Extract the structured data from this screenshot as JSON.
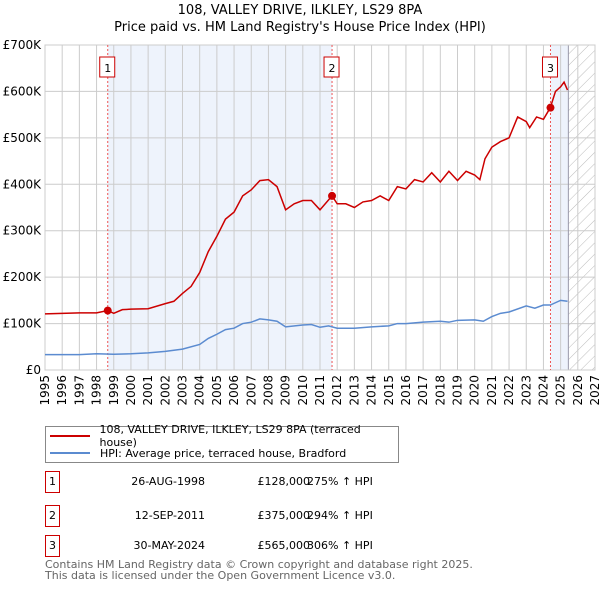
{
  "chart_data": {
    "type": "line",
    "title": "108, VALLEY DRIVE, ILKLEY, LS29 8PA",
    "subtitle": "Price paid vs. HM Land Registry's House Price Index (HPI)",
    "xlim": [
      1995,
      2027
    ],
    "ylim": [
      0,
      700000
    ],
    "x_ticks": [
      "1995",
      "1996",
      "1997",
      "1998",
      "1999",
      "2000",
      "2001",
      "2002",
      "2003",
      "2004",
      "2005",
      "2006",
      "2007",
      "2008",
      "2009",
      "2010",
      "2011",
      "2012",
      "2013",
      "2014",
      "2015",
      "2016",
      "2017",
      "2018",
      "2019",
      "2020",
      "2021",
      "2022",
      "2023",
      "2024",
      "2025",
      "2026",
      "2027"
    ],
    "y_ticks": [
      {
        "v": 0,
        "label": "£0"
      },
      {
        "v": 100000,
        "label": "£100K"
      },
      {
        "v": 200000,
        "label": "£200K"
      },
      {
        "v": 300000,
        "label": "£300K"
      },
      {
        "v": 400000,
        "label": "£400K"
      },
      {
        "v": 500000,
        "label": "£500K"
      },
      {
        "v": 600000,
        "label": "£600K"
      },
      {
        "v": 700000,
        "label": "£700K"
      }
    ],
    "grid": true,
    "series": [
      {
        "name": "108, VALLEY DRIVE, ILKLEY, LS29 8PA (terraced house)",
        "color": "#cc0000",
        "x": [
          1995,
          1996,
          1997,
          1998,
          1998.65,
          1999,
          1999.5,
          2000,
          2001,
          2002,
          2002.5,
          2003,
          2003.5,
          2004,
          2004.5,
          2005,
          2005.5,
          2006,
          2006.5,
          2007,
          2007.5,
          2008,
          2008.5,
          2009,
          2009.5,
          2010,
          2010.5,
          2011,
          2011.7,
          2012,
          2012.5,
          2013,
          2013.5,
          2014,
          2014.5,
          2015,
          2015.5,
          2016,
          2016.5,
          2017,
          2017.5,
          2018,
          2018.5,
          2019,
          2019.5,
          2020,
          2020.3,
          2020.6,
          2021,
          2021.5,
          2022,
          2022.5,
          2023,
          2023.2,
          2023.6,
          2024,
          2024.4,
          2024.7,
          2025,
          2025.2,
          2025.4
        ],
        "y": [
          121000,
          122000,
          123000,
          123000,
          128000,
          122000,
          130000,
          131000,
          132000,
          143000,
          148000,
          165000,
          180000,
          210000,
          255000,
          288000,
          325000,
          340000,
          375000,
          388000,
          408000,
          410000,
          395000,
          345000,
          358000,
          365000,
          365000,
          345000,
          375000,
          358000,
          358000,
          350000,
          362000,
          365000,
          375000,
          365000,
          395000,
          390000,
          410000,
          405000,
          425000,
          405000,
          428000,
          408000,
          428000,
          420000,
          410000,
          455000,
          480000,
          492000,
          500000,
          545000,
          535000,
          522000,
          545000,
          540000,
          565000,
          600000,
          610000,
          620000,
          603000
        ]
      },
      {
        "name": "HPI: Average price, terraced house, Bradford",
        "color": "#5b8bd0",
        "x": [
          1995,
          1997,
          1998,
          1999,
          2000,
          2001,
          2002,
          2003,
          2004,
          2004.5,
          2005,
          2005.5,
          2006,
          2006.5,
          2007,
          2007.5,
          2008,
          2008.5,
          2009,
          2010,
          2010.5,
          2011,
          2011.5,
          2012,
          2013,
          2014,
          2015,
          2015.5,
          2016,
          2017,
          2018,
          2018.5,
          2019,
          2020,
          2020.5,
          2021,
          2021.5,
          2022,
          2023,
          2023.5,
          2024,
          2024.4,
          2025,
          2025.4
        ],
        "y": [
          33000,
          33000,
          35000,
          34000,
          35000,
          37000,
          40000,
          45000,
          55000,
          68000,
          77000,
          87000,
          90000,
          100000,
          103000,
          110000,
          108000,
          105000,
          93000,
          97000,
          98000,
          92000,
          95000,
          90000,
          90000,
          93000,
          95000,
          100000,
          100000,
          103000,
          105000,
          103000,
          107000,
          108000,
          105000,
          115000,
          122000,
          125000,
          138000,
          133000,
          140000,
          140000,
          150000,
          148000
        ]
      }
    ],
    "sales": [
      {
        "n": "1",
        "x": 1998.65,
        "y": 128000,
        "date": "26-AUG-1998",
        "price": "£128,000",
        "hpi": "275% ↑ HPI"
      },
      {
        "n": "2",
        "x": 2011.7,
        "y": 375000,
        "date": "12-SEP-2011",
        "price": "£375,000",
        "hpi": "294% ↑ HPI"
      },
      {
        "n": "3",
        "x": 2024.41,
        "y": 565000,
        "date": "30-MAY-2024",
        "price": "£565,000",
        "hpi": "306% ↑ HPI"
      }
    ],
    "forecast_start": 2025.45,
    "legend_position": "below"
  },
  "footer": {
    "line1": "Contains HM Land Registry data © Crown copyright and database right 2025.",
    "line2": "This data is licensed under the Open Government Licence v3.0."
  }
}
